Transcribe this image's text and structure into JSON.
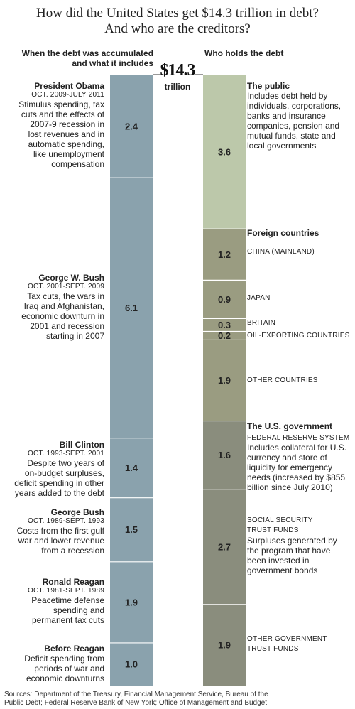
{
  "title": {
    "line1": "How did the United States get $14.3 trillion in debt?",
    "line2": "And who are the creditors?"
  },
  "left_header": {
    "line1": "When the debt was accumulated",
    "line2": "and what it includes"
  },
  "right_header": "Who holds the debt",
  "total": {
    "amount": "$14.3",
    "unit": "trillion"
  },
  "accumulated": [
    {
      "name": "President Obama",
      "dates": "OCT. 2009-JULY 2011",
      "desc_lines": [
        "Stimulus spending, tax",
        "cuts and the effects of",
        "2007-9 recession in",
        "lost revenues and in",
        "automatic spending,",
        "like unemployment",
        "compensation"
      ]
    },
    {
      "name": "George W. Bush",
      "dates": "OCT. 2001-SEPT. 2009",
      "desc_lines": [
        "Tax cuts, the wars in",
        "Iraq and Afghanistan,",
        "economic downturn in",
        "2001 and recession",
        "starting in 2007"
      ]
    },
    {
      "name": "Bill Clinton",
      "dates": "OCT. 1993-SEPT. 2001",
      "desc_lines": [
        "Despite two years of",
        "on-budget surpluses,",
        "deficit spending in other",
        "years added to the debt"
      ]
    },
    {
      "name": "George Bush",
      "dates": "OCT. 1989-SEPT. 1993",
      "desc_lines": [
        "Costs from the first gulf",
        "war and lower revenue",
        "from a recession"
      ]
    },
    {
      "name": "Ronald Reagan",
      "dates": "OCT. 1981-SEPT. 1989",
      "desc_lines": [
        "Peacetime defense",
        "spending and",
        "permanent tax cuts"
      ]
    },
    {
      "name": "Before Reagan",
      "dates": "",
      "desc_lines": [
        "Deficit spending from",
        "periods of war and",
        "economic downturns"
      ]
    }
  ],
  "holders_text": {
    "public": {
      "heading": "The public",
      "desc_lines": [
        "Includes debt held by",
        "individuals, corporations,",
        "banks and insurance",
        "companies, pension and",
        "mutual funds, state and",
        "local governments"
      ]
    },
    "foreign_heading": "Foreign countries",
    "china": "CHINA (MAINLAND)",
    "japan": "JAPAN",
    "britain": "BRITAIN",
    "oil": "OIL-EXPORTING COUNTRIES",
    "other_countries": "OTHER COUNTRIES",
    "us_heading": "The U.S. government",
    "fed": {
      "cap": "FEDERAL RESERVE SYSTEM",
      "desc_lines": [
        "Includes collateral for U.S.",
        "currency and store of",
        "liquidity for emergency",
        "needs (increased by $855",
        "billion since July 2010)"
      ]
    },
    "ss": {
      "cap_lines": [
        "SOCIAL SECURITY",
        "TRUST FUNDS"
      ],
      "desc_lines": [
        "Surpluses generated by",
        "the program that have",
        "been invested in",
        "government bonds"
      ]
    },
    "other_gov": {
      "cap_lines": [
        "OTHER GOVERNMENT",
        "TRUST FUNDS"
      ]
    }
  },
  "sources": {
    "line1": "Sources: Department of the Treasury, Financial Management Service, Bureau of the",
    "line2": "Public Debt; Federal Reserve Bank of New York; Office of Management and Budget"
  },
  "colors": {
    "left_bar": "#8aa2ad",
    "public": "#bcc8aa",
    "foreign": "#9a9c81",
    "us_gov": "#8a8d7d",
    "divider": "#ffffff"
  },
  "chart_data": [
    {
      "type": "bar",
      "title": "When the debt was accumulated and what it includes",
      "stacked": true,
      "unit": "trillion",
      "total": 14.3,
      "categories": [
        "President Obama",
        "George W. Bush",
        "Bill Clinton",
        "George Bush",
        "Ronald Reagan",
        "Before Reagan"
      ],
      "values": [
        2.4,
        6.1,
        1.4,
        1.5,
        1.9,
        1.0
      ],
      "value_labels": [
        "2.4",
        "6.1",
        "1.4",
        "1.5",
        "1.9",
        "1.0"
      ]
    },
    {
      "type": "bar",
      "title": "Who holds the debt",
      "stacked": true,
      "unit": "trillion",
      "total": 14.3,
      "categories": [
        "The public",
        "CHINA (MAINLAND)",
        "JAPAN",
        "BRITAIN",
        "OIL-EXPORTING COUNTRIES",
        "OTHER COUNTRIES",
        "FEDERAL RESERVE SYSTEM",
        "SOCIAL SECURITY TRUST FUNDS",
        "OTHER GOVERNMENT TRUST FUNDS"
      ],
      "groups": [
        "The public",
        "Foreign countries",
        "Foreign countries",
        "Foreign countries",
        "Foreign countries",
        "Foreign countries",
        "The U.S. government",
        "The U.S. government",
        "The U.S. government"
      ],
      "values": [
        3.6,
        1.2,
        0.9,
        0.3,
        0.2,
        1.9,
        1.6,
        2.7,
        1.9
      ],
      "value_labels": [
        "3.6",
        "1.2",
        "0.9",
        "0.3",
        "0.2",
        "1.9",
        "1.6",
        "2.7",
        "1.9"
      ]
    }
  ]
}
